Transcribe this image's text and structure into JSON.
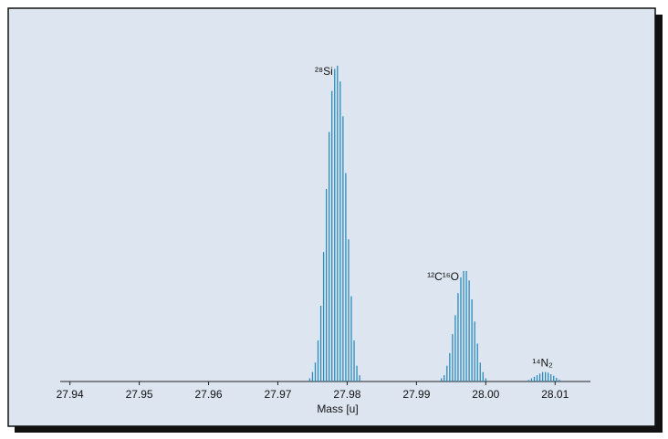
{
  "chart_data": {
    "type": "stick",
    "xlabel": "Mass [u]",
    "xlim": [
      27.9386,
      28.0151
    ],
    "xticks": [
      27.94,
      27.95,
      27.96,
      27.97,
      27.98,
      27.99,
      {
        "value": 28.0,
        "label": "28.00"
      },
      28.01
    ],
    "ylim": [
      0,
      100
    ],
    "color": "#2b8bbb",
    "series": [
      {
        "name": "²⁸Si",
        "x": [
          27.9746,
          27.975,
          27.9754,
          27.9758,
          27.9762,
          27.9766,
          27.977,
          27.9774,
          27.9778,
          27.9782,
          27.9786,
          27.979,
          27.9794,
          27.9798,
          27.9802,
          27.9806,
          27.981,
          27.9814,
          27.9818
        ],
        "values": [
          1,
          3,
          6,
          13,
          24,
          41,
          61,
          79,
          92,
          99,
          100,
          95,
          84,
          66,
          45,
          27,
          13,
          5,
          2
        ]
      },
      {
        "name": "¹²C¹⁶O",
        "x": [
          27.9936,
          27.994,
          27.9944,
          27.9948,
          27.9952,
          27.9956,
          27.996,
          27.9964,
          27.9968,
          27.9972,
          27.9976,
          27.998,
          27.9984,
          27.9988,
          27.9992,
          27.9996,
          28.0
        ],
        "values": [
          1,
          2,
          5,
          9,
          15,
          21,
          28,
          33,
          35,
          35,
          32,
          26,
          19,
          12,
          6,
          3,
          1
        ]
      },
      {
        "name": "¹⁴N₂",
        "x": [
          28.0062,
          28.0066,
          28.007,
          28.0074,
          28.0078,
          28.0082,
          28.0086,
          28.009,
          28.0094,
          28.0098,
          28.0102,
          28.0106
        ],
        "values": [
          0.5,
          1,
          1.5,
          2,
          2.5,
          3,
          3,
          2.8,
          2.3,
          1.8,
          1.2,
          0.6
        ]
      }
    ]
  }
}
